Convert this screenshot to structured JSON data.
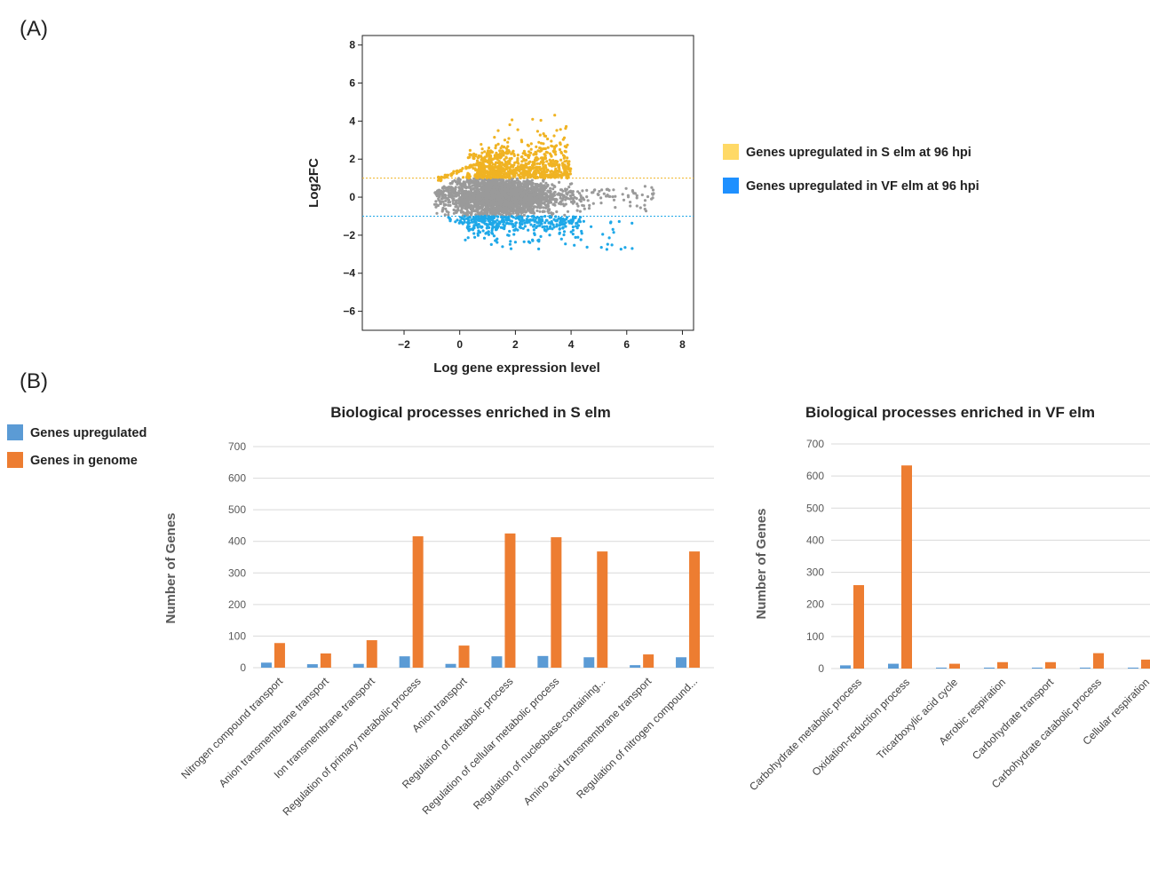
{
  "panels": {
    "a_label": "(A)",
    "b_label": "(B)"
  },
  "ma_plot": {
    "ylabel": "Log2FC",
    "xlabel": "Log gene expression level",
    "xlim": [
      -3.5,
      8.4
    ],
    "ylim": [
      -7,
      8.5
    ],
    "xticks": [
      "−2",
      "0",
      "2",
      "4",
      "6",
      "8"
    ],
    "xtick_values": [
      -2,
      0,
      2,
      4,
      6,
      8
    ],
    "yticks": [
      "−6",
      "−4",
      "−2",
      "0",
      "2",
      "4",
      "6",
      "8"
    ],
    "ytick_values": [
      -6,
      -4,
      -2,
      0,
      2,
      4,
      6,
      8
    ],
    "threshold_up": 1,
    "threshold_down": -1,
    "colors": {
      "up": "#f0b323",
      "down": "#1fa8e8",
      "neutral": "#9a9a9a"
    },
    "legend": [
      {
        "label": "Genes upregulated in S elm at 96 hpi",
        "color": "#ffd966"
      },
      {
        "label": "Genes upregulated in VF elm at 96 hpi",
        "color": "#1e90ff"
      }
    ]
  },
  "bar_legend": [
    {
      "label": "Genes upregulated",
      "color": "#5b9bd5"
    },
    {
      "label": "Genes in genome",
      "color": "#ed7d31"
    }
  ],
  "chart_data": [
    {
      "type": "bar",
      "title": "Biological processes enriched in S elm",
      "ylabel": "Number of Genes",
      "ylim": [
        0,
        700
      ],
      "yticks": [
        0,
        100,
        200,
        300,
        400,
        500,
        600,
        700
      ],
      "categories": [
        "Nitrogen compound transport",
        "Anion transmembrane transport",
        "Ion transmembrane transport",
        "Regulation of primary metabolic process",
        "Anion transport",
        "Regulation of metabolic process",
        "Regulation of cellular metabolic process",
        "Regulation of nucleobase-containing...",
        "Amino acid transmembrane transport",
        "Regulation of nitrogen compound..."
      ],
      "series": [
        {
          "name": "Genes upregulated",
          "values": [
            16,
            11,
            12,
            36,
            12,
            36,
            37,
            33,
            8,
            33
          ]
        },
        {
          "name": "Genes in genome",
          "values": [
            78,
            45,
            87,
            416,
            70,
            425,
            413,
            368,
            42,
            368
          ]
        }
      ]
    },
    {
      "type": "bar",
      "title": "Biological processes enriched in VF elm",
      "ylabel": "Number of Genes",
      "ylim": [
        0,
        700
      ],
      "yticks": [
        0,
        100,
        200,
        300,
        400,
        500,
        600,
        700
      ],
      "categories": [
        "Carbohydrate metabolic process",
        "Oxidation-reduction process",
        "Tricarboxylic acid cycle",
        "Aerobic respiration",
        "Carbohydrate transport",
        "Carbohydrate catabolic process",
        "Cellular respiration"
      ],
      "series": [
        {
          "name": "Genes upregulated",
          "values": [
            10,
            15,
            3,
            3,
            3,
            3,
            3
          ]
        },
        {
          "name": "Genes in genome",
          "values": [
            260,
            633,
            15,
            20,
            20,
            48,
            28
          ]
        }
      ]
    }
  ]
}
